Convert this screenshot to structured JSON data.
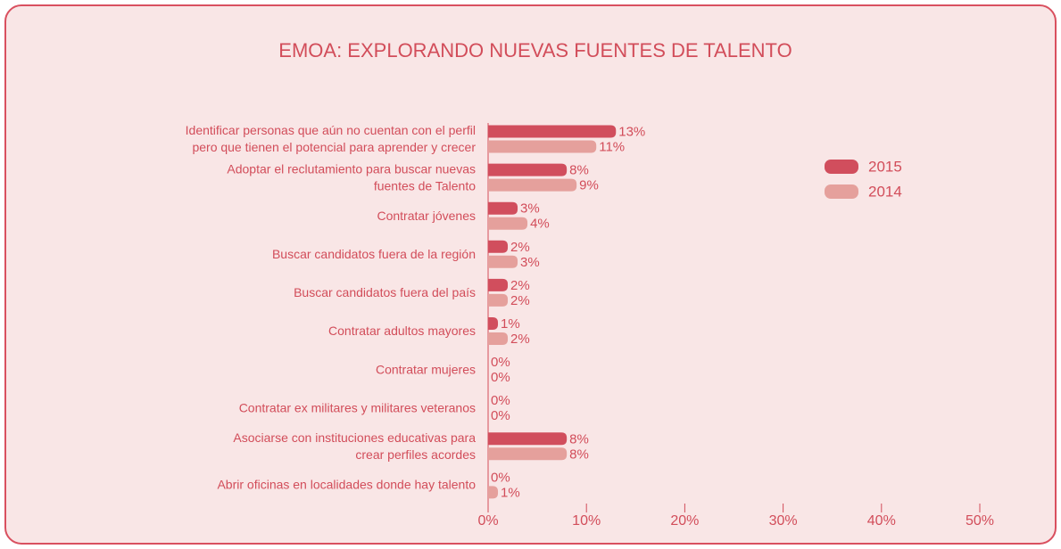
{
  "chart_data": {
    "type": "barh",
    "title": "EMOA: EXPLORANDO NUEVAS FUENTES DE TALENTO",
    "categories": [
      [
        "Identificar personas que aún no cuentan con el perfil",
        "pero que tienen el potencial para aprender y crecer"
      ],
      [
        "Adoptar el reclutamiento para buscar nuevas",
        "fuentes de Talento"
      ],
      [
        "Contratar jóvenes"
      ],
      [
        "Buscar candidatos fuera de la región"
      ],
      [
        "Buscar candidatos fuera del país"
      ],
      [
        "Contratar adultos mayores"
      ],
      [
        "Contratar mujeres"
      ],
      [
        "Contratar ex militares y militares veteranos"
      ],
      [
        "Asociarse con instituciones educativas para",
        "crear perfiles acordes"
      ],
      [
        "Abrir oficinas en localidades donde hay talento"
      ]
    ],
    "series": [
      {
        "name": "2015",
        "color": "#d14e5d",
        "values": [
          13,
          8,
          3,
          2,
          2,
          1,
          0,
          0,
          8,
          0
        ],
        "value_labels": [
          "13%",
          "8%",
          "3%",
          "2%",
          "2%",
          "1%",
          "0%",
          "0%",
          "8%",
          "0%"
        ]
      },
      {
        "name": "2014",
        "color": "#e5a09c",
        "values": [
          11,
          9,
          4,
          3,
          2,
          2,
          0,
          0,
          8,
          1
        ],
        "value_labels": [
          "11%",
          "9%",
          "4%",
          "3%",
          "2%",
          "2%",
          "0%",
          "0%",
          "8%",
          "1%"
        ]
      }
    ],
    "xlim": [
      0,
      50
    ],
    "xticks": [
      {
        "value": 0,
        "label": "0%"
      },
      {
        "value": 10,
        "label": "10%"
      },
      {
        "value": 20,
        "label": "20%"
      },
      {
        "value": 30,
        "label": "30%"
      },
      {
        "value": 40,
        "label": "40%"
      },
      {
        "value": 50,
        "label": "50%"
      }
    ],
    "legend": "right"
  }
}
